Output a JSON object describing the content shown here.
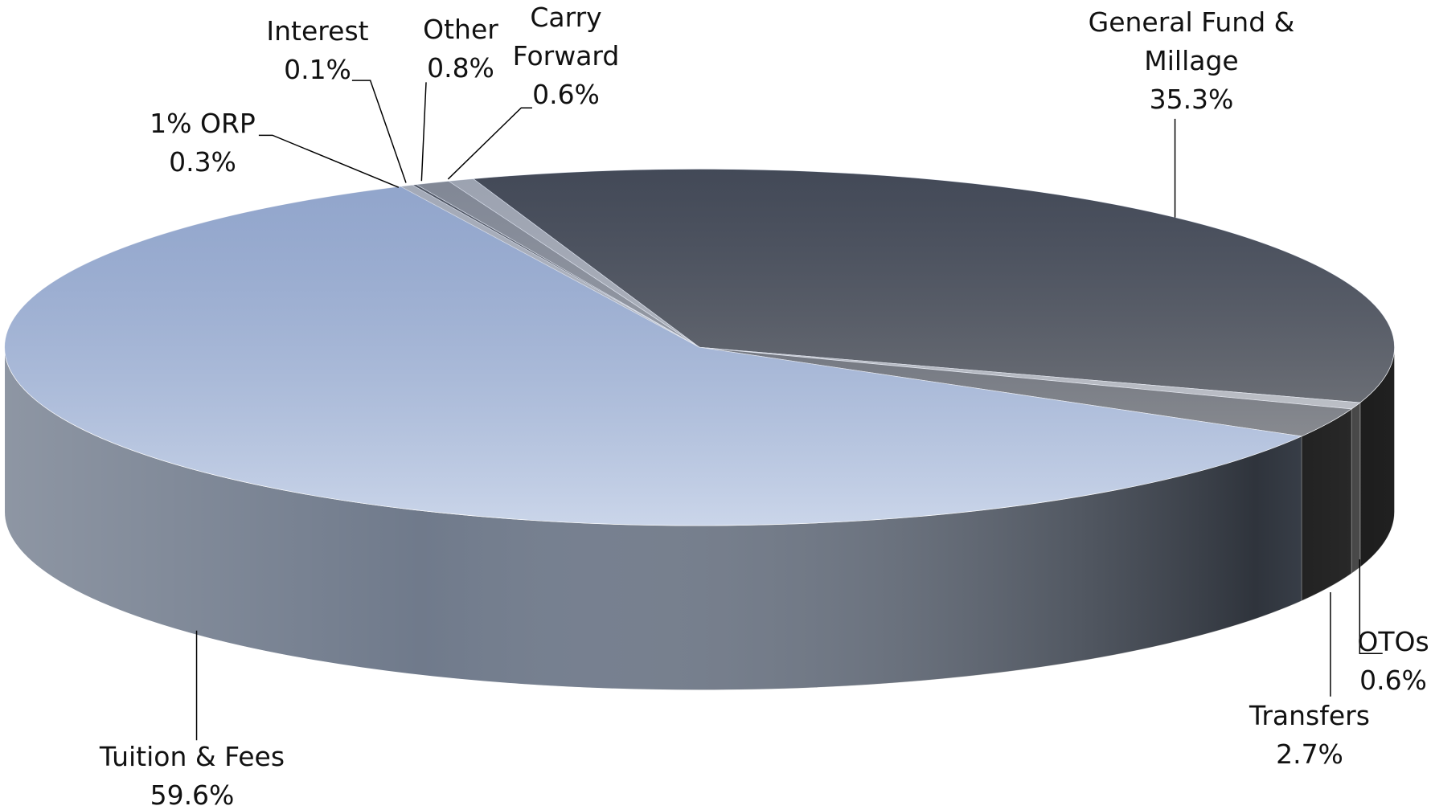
{
  "chart_data": {
    "type": "pie",
    "categories": [
      "General Fund & Millage",
      "OTOs",
      "Transfers",
      "Tuition & Fees",
      "1% ORP",
      "Interest",
      "Other",
      "Carry Forward"
    ],
    "values": [
      35.3,
      0.6,
      2.7,
      59.6,
      0.3,
      0.1,
      0.8,
      0.6
    ],
    "value_labels": [
      "35.3%",
      "0.6%",
      "2.7%",
      "59.6%",
      "0.3%",
      "0.1%",
      "0.8%",
      "0.6%"
    ],
    "colors": [
      "#4d4d4d",
      "#bfbfbf",
      "#6b6b6b",
      "#aebfde",
      "#c4c4c4",
      "#5a5a5a",
      "#9a9a9a",
      "#bcbcbc"
    ]
  }
}
